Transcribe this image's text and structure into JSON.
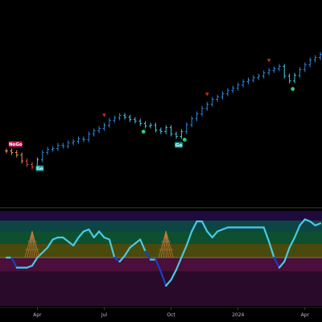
{
  "chart_data": [
    {
      "type": "ohlc-bar",
      "title": "",
      "note": "Price panel, bars colored by trend regime (blue = strong up, aqua = weak up, orange/red = down)",
      "y_scale": "log-like, unlabeled",
      "weekly_close": [
        4.3,
        4.26,
        4.2,
        4.05,
        3.96,
        3.9,
        4.08,
        4.26,
        4.34,
        4.36,
        4.44,
        4.42,
        4.5,
        4.54,
        4.6,
        4.58,
        4.72,
        4.8,
        4.86,
        4.94,
        5.06,
        5.12,
        5.18,
        5.14,
        5.08,
        5.04,
        4.98,
        4.92,
        4.94,
        4.82,
        4.78,
        4.88,
        4.72,
        4.66,
        4.78,
        4.95,
        5.1,
        5.22,
        5.36,
        5.46,
        5.58,
        5.64,
        5.72,
        5.8,
        5.86,
        5.94,
        6.02,
        6.06,
        6.12,
        6.16,
        6.24,
        6.3,
        6.34,
        6.4,
        6.16,
        6.04,
        6.18,
        6.32,
        6.44,
        6.56,
        6.62,
        6.7
      ],
      "regime": [
        "orange",
        "orange",
        "orange",
        "orange",
        "red",
        "red",
        "aqua",
        "blue",
        "blue",
        "blue",
        "blue",
        "blue",
        "blue",
        "blue",
        "blue",
        "blue",
        "blue",
        "blue",
        "blue",
        "blue",
        "blue",
        "blue",
        "blue",
        "aqua",
        "aqua",
        "aqua",
        "aqua",
        "aqua",
        "aqua",
        "aqua",
        "aqua",
        "aqua",
        "aqua",
        "aqua",
        "aqua",
        "blue",
        "blue",
        "blue",
        "blue",
        "blue",
        "blue",
        "blue",
        "blue",
        "blue",
        "blue",
        "blue",
        "blue",
        "blue",
        "blue",
        "blue",
        "blue",
        "blue",
        "blue",
        "blue",
        "aqua",
        "aqua",
        "aqua",
        "blue",
        "blue",
        "blue",
        "blue",
        "blue"
      ],
      "signals": [
        {
          "type": "NoGo",
          "bar": 2
        },
        {
          "type": "Go",
          "bar": 6
        },
        {
          "type": "countertrend-down",
          "bar": 19
        },
        {
          "type": "trend-continuation",
          "bar": 26
        },
        {
          "type": "Go",
          "bar": 33
        },
        {
          "type": "trend-continuation",
          "bar": 34
        },
        {
          "type": "countertrend-down",
          "bar": 39
        },
        {
          "type": "countertrend-down",
          "bar": 51
        },
        {
          "type": "trend-continuation",
          "bar": 55
        }
      ],
      "signal_labels": {
        "Go": "Go",
        "NoGo": "NoGo"
      },
      "colors": {
        "blue": "#2e86de",
        "aqua": "#48cae4",
        "orange": "#f39c5a",
        "red": "#e74c3c",
        "go_dot": "#2ecc71",
        "arrow": "#e52222",
        "go_label_bg": "#0f9a9a",
        "nogo_label_bg": "#c2185b"
      }
    },
    {
      "type": "line",
      "title": "",
      "note": "Oscillator panel with colored background zones",
      "x": [
        "Apr",
        "Jul",
        "Oct",
        "2024",
        "Apr"
      ],
      "oscillator": [
        0,
        0,
        -1,
        -1,
        -1,
        -0.8,
        0,
        0.5,
        1.0,
        1.8,
        2.0,
        2.0,
        1.6,
        1.2,
        2.0,
        2.6,
        2.8,
        2.0,
        2.6,
        2.0,
        1.8,
        0,
        -0.4,
        0.2,
        1.0,
        1.4,
        1.8,
        0.6,
        -0.2,
        -0.2,
        -1.4,
        -2.8,
        -2.2,
        -1.2,
        0,
        1.2,
        2.6,
        3.6,
        3.6,
        2.6,
        2.0,
        2.6,
        2.8,
        3.0,
        3.0,
        3.0,
        3.0,
        3.0,
        3.0,
        3.0,
        3.0,
        1.6,
        0,
        -1.0,
        -0.4,
        1.0,
        2.0,
        3.2,
        3.8,
        3.6,
        3.2,
        3.4
      ],
      "zone_colors": [
        "#1f0a3c",
        "#0d4545",
        "#0d4f2f",
        "#4a4a0d",
        "#4a0f3a",
        "#2a0a2a"
      ],
      "line_colors": {
        "up": "#48cae4",
        "down": "#1a3fc4"
      },
      "wave_marker_color": "#c87a3c",
      "wave_marker_bars": [
        5,
        31
      ]
    }
  ],
  "axis": {
    "labels": [
      "Apr",
      "Jul",
      "Oct",
      "2024",
      "Apr"
    ]
  }
}
